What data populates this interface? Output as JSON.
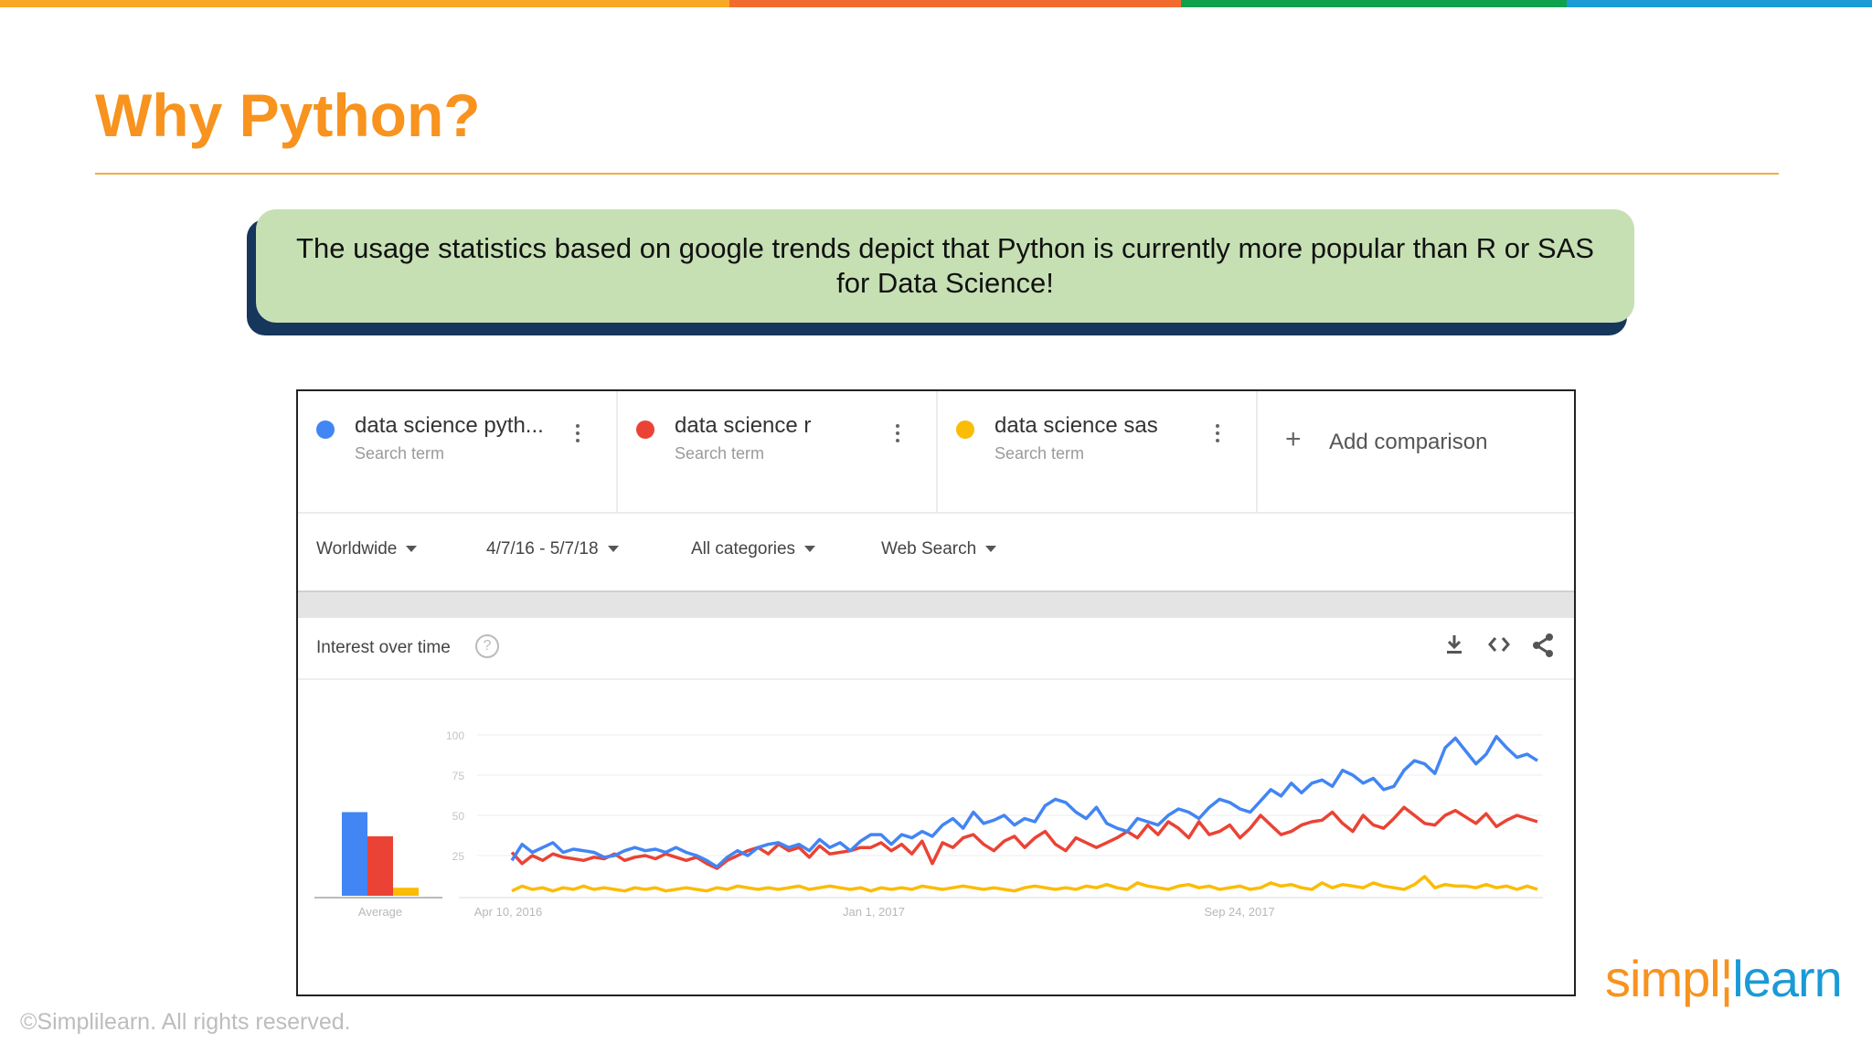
{
  "slide": {
    "title": "Why Python?",
    "callout": "The usage statistics based on google trends depict that Python is currently more popular than R or SAS for Data Science!",
    "copyright": "©Simplilearn. All rights reserved.",
    "logo_part1": "simpl",
    "logo_part2": "learn",
    "colors": {
      "accent": "#F7931E",
      "rule": "#F0B13C",
      "callout_bg": "#C6E0B4",
      "callout_shadow": "#16365C"
    },
    "top_bar_colors": [
      "#F9A825",
      "#F26B2E",
      "#0FA14B",
      "#1B9AD6"
    ]
  },
  "trends": {
    "terms": [
      {
        "name": "data science pyth...",
        "sub": "Search term",
        "color": "#4285F4",
        "menu_icon": "more-vert-icon"
      },
      {
        "name": "data science r",
        "sub": "Search term",
        "color": "#EA4335",
        "menu_icon": "more-vert-icon"
      },
      {
        "name": "data science sas",
        "sub": "Search term",
        "color": "#FBBC04",
        "menu_icon": "more-vert-icon"
      }
    ],
    "add_comparison": "Add comparison",
    "filters": {
      "region": "Worldwide",
      "date_range": "4/7/16 - 5/7/18",
      "category": "All categories",
      "search_type": "Web Search"
    },
    "card_title": "Interest over time",
    "help_glyph": "?",
    "icons": [
      "help-icon",
      "download-icon",
      "embed-icon",
      "share-icon"
    ]
  },
  "chart_data": {
    "type": "line",
    "title": "Interest over time",
    "y_ticks": [
      "100",
      "75",
      "50",
      "25"
    ],
    "ylim": [
      0,
      100
    ],
    "x_tick_labels": [
      "Apr 10, 2016",
      "Jan 1, 2017",
      "Sep 24, 2017"
    ],
    "average_label": "Average",
    "average_values": [
      52,
      37,
      5
    ],
    "grid": true,
    "series": [
      {
        "name": "data science pyth...",
        "color": "#4285F4",
        "values": [
          22,
          32,
          27,
          30,
          33,
          27,
          29,
          28,
          27,
          24,
          25,
          28,
          30,
          28,
          29,
          27,
          30,
          27,
          25,
          22,
          18,
          24,
          28,
          25,
          30,
          32,
          33,
          30,
          32,
          28,
          35,
          30,
          33,
          28,
          34,
          38,
          38,
          32,
          38,
          36,
          40,
          37,
          44,
          48,
          42,
          52,
          45,
          47,
          50,
          44,
          48,
          46,
          56,
          60,
          58,
          52,
          48,
          55,
          45,
          42,
          40,
          48,
          46,
          44,
          50,
          54,
          52,
          48,
          55,
          60,
          58,
          54,
          52,
          59,
          66,
          62,
          70,
          64,
          70,
          72,
          68,
          78,
          75,
          70,
          73,
          66,
          68,
          78,
          84,
          82,
          76,
          92,
          98,
          90,
          82,
          88,
          99,
          92,
          86,
          88,
          84
        ]
      },
      {
        "name": "data science r",
        "color": "#EA4335",
        "values": [
          27,
          20,
          25,
          22,
          26,
          24,
          23,
          22,
          24,
          23,
          26,
          22,
          24,
          25,
          23,
          26,
          24,
          22,
          24,
          20,
          17,
          22,
          25,
          28,
          30,
          26,
          32,
          28,
          30,
          24,
          31,
          26,
          27,
          28,
          30,
          30,
          33,
          28,
          32,
          26,
          34,
          20,
          33,
          30,
          36,
          38,
          32,
          28,
          34,
          37,
          30,
          36,
          40,
          32,
          28,
          36,
          33,
          30,
          33,
          36,
          40,
          36,
          44,
          38,
          46,
          42,
          36,
          46,
          38,
          40,
          44,
          36,
          42,
          50,
          44,
          38,
          40,
          44,
          46,
          47,
          52,
          45,
          40,
          50,
          44,
          42,
          48,
          55,
          50,
          45,
          44,
          50,
          53,
          49,
          45,
          51,
          43,
          47,
          50,
          48,
          46
        ]
      },
      {
        "name": "data science sas",
        "color": "#FBBC04",
        "values": [
          3,
          6,
          4,
          5,
          3,
          5,
          4,
          6,
          4,
          5,
          4,
          3,
          5,
          4,
          5,
          3,
          4,
          5,
          4,
          3,
          5,
          4,
          6,
          5,
          4,
          5,
          4,
          5,
          6,
          4,
          5,
          6,
          5,
          4,
          5,
          3,
          5,
          4,
          5,
          4,
          6,
          5,
          4,
          5,
          6,
          5,
          4,
          5,
          4,
          3,
          5,
          6,
          5,
          4,
          5,
          4,
          6,
          5,
          7,
          5,
          4,
          8,
          6,
          5,
          4,
          6,
          7,
          5,
          6,
          4,
          5,
          6,
          4,
          5,
          8,
          6,
          7,
          5,
          4,
          8,
          5,
          7,
          6,
          5,
          8,
          6,
          5,
          4,
          7,
          12,
          5,
          7,
          6,
          6,
          5,
          7,
          5,
          6,
          4,
          6,
          4
        ]
      }
    ]
  }
}
